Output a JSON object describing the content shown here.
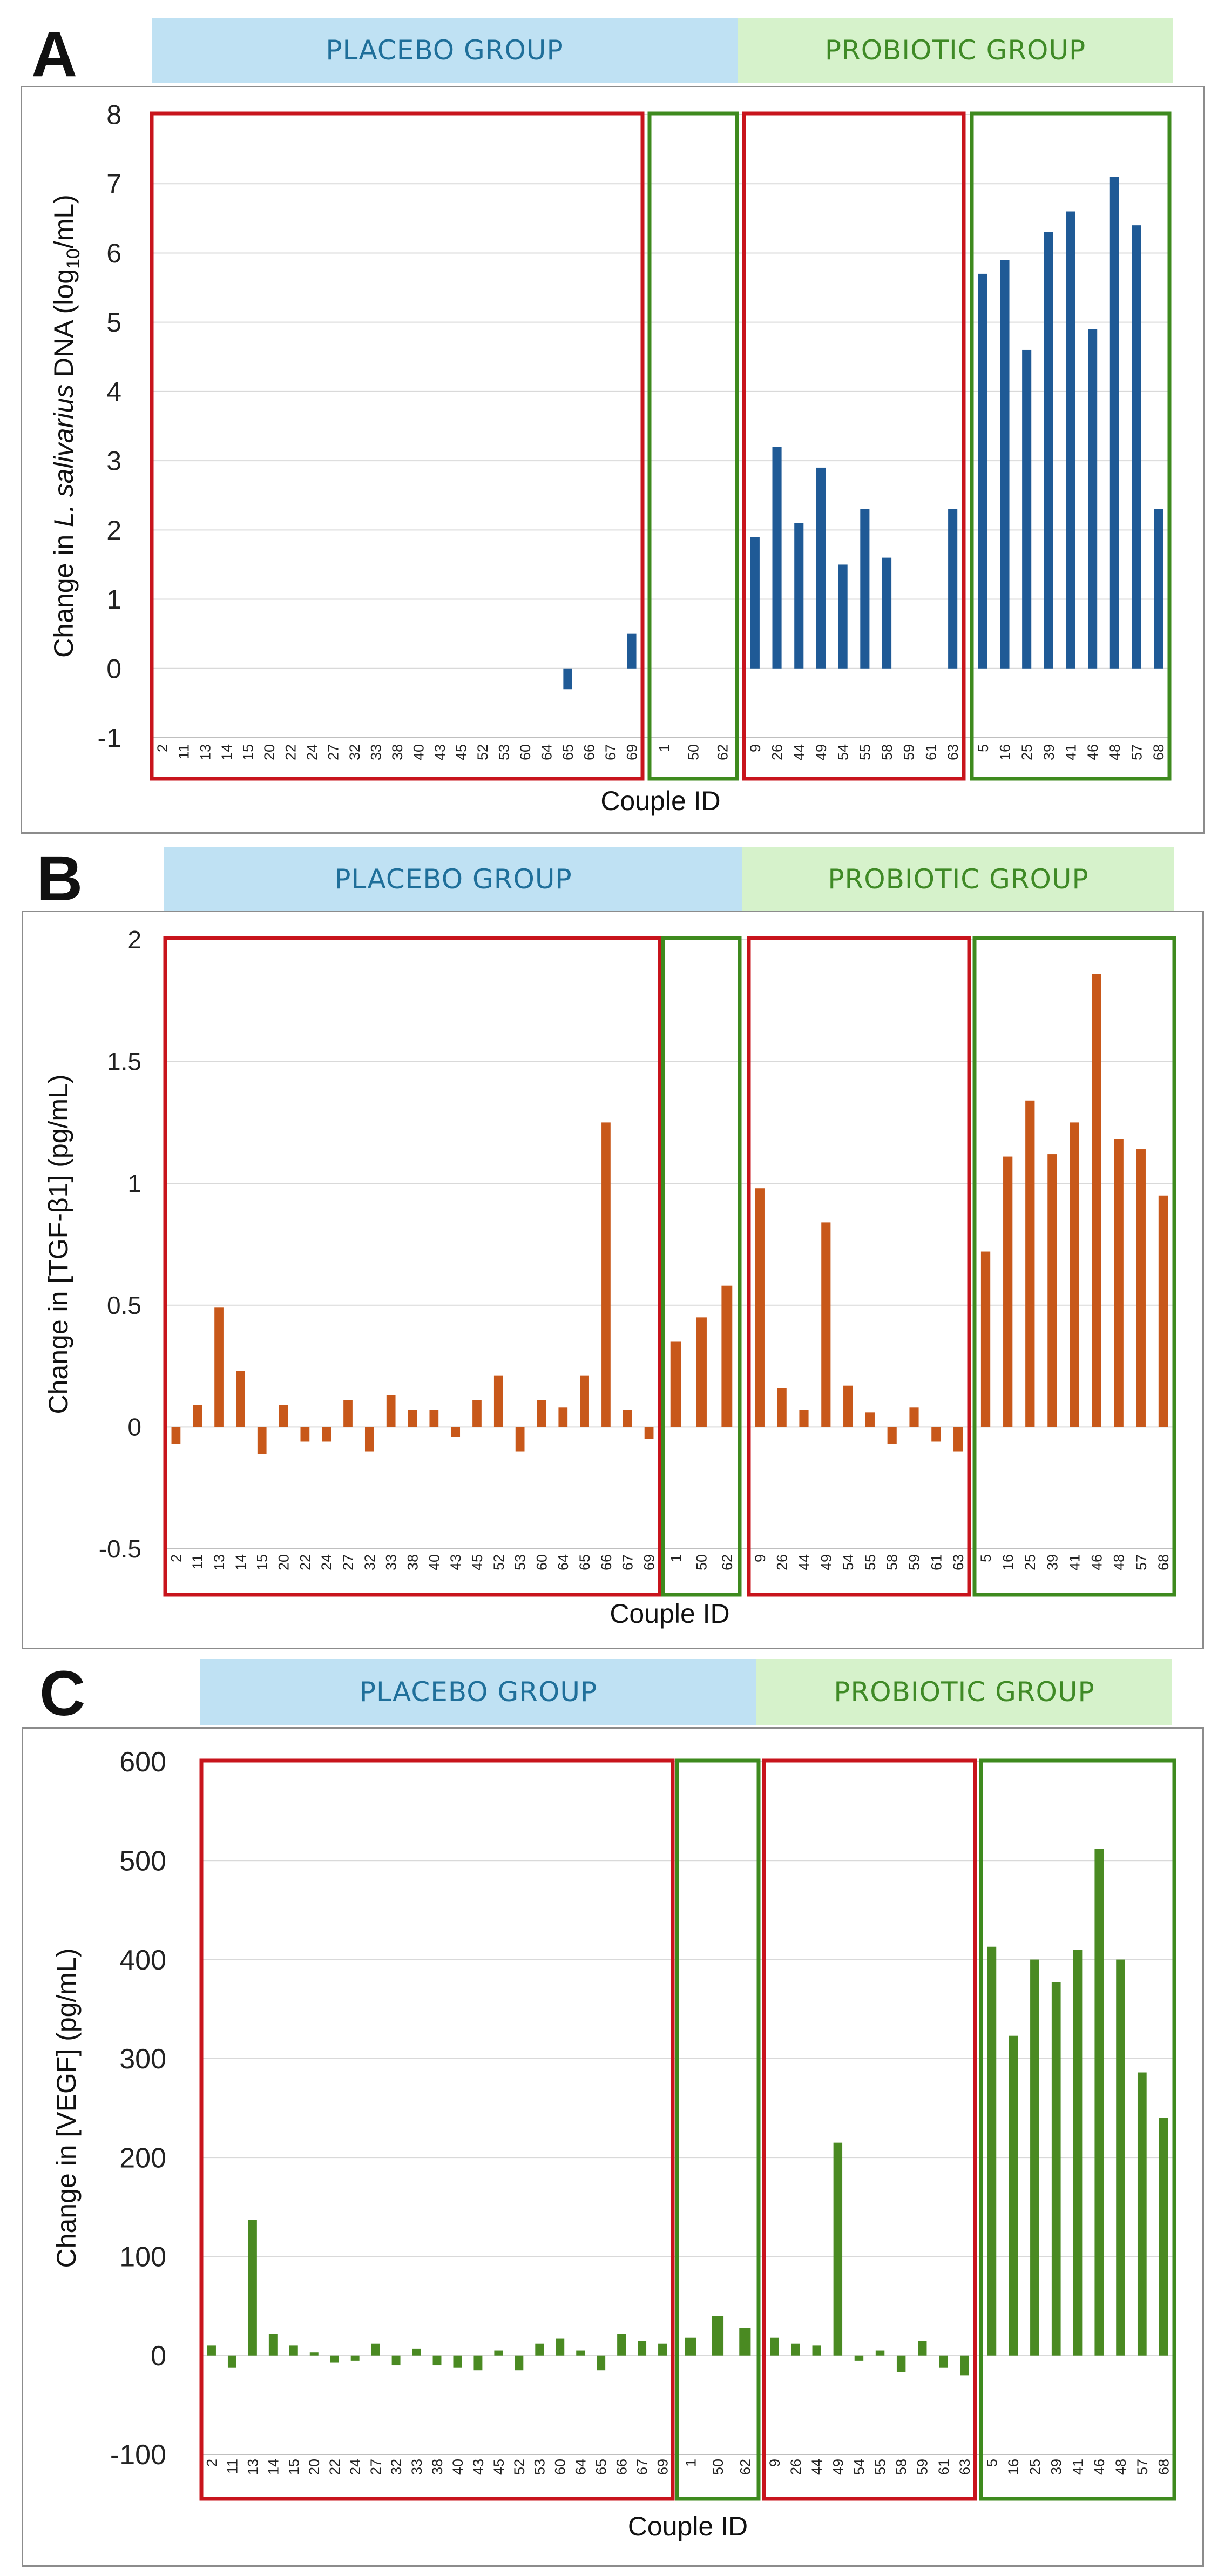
{
  "panels": [
    {
      "letter": "A",
      "placebo_label": "PLACEBO GROUP",
      "probiotic_label": "PROBIOTIC GROUP"
    },
    {
      "letter": "B",
      "placebo_label": "PLACEBO GROUP",
      "probiotic_label": "PROBIOTIC GROUP"
    },
    {
      "letter": "C",
      "placebo_label": "PLACEBO GROUP",
      "probiotic_label": "PROBIOTIC GROUP"
    }
  ],
  "chart_data": [
    {
      "type": "bar",
      "panel": "A",
      "ylabel_parts": [
        "Change in ",
        "L. salivarius",
        " DNA (log",
        "10",
        "/mL)"
      ],
      "xlabel": "Couple ID",
      "ylim": [
        -1,
        8
      ],
      "yticks": [
        -1,
        0,
        1,
        2,
        3,
        4,
        5,
        6,
        7,
        8
      ],
      "color": "#1f5a96",
      "boxes": [
        {
          "group": "placebo",
          "border": "#c8141c",
          "categories": [
            "2",
            "11",
            "13",
            "14",
            "15",
            "20",
            "22",
            "24",
            "27",
            "32",
            "33",
            "38",
            "40",
            "43",
            "45",
            "52",
            "53",
            "60",
            "64",
            "65",
            "66",
            "67",
            "69"
          ],
          "values": [
            0,
            0,
            0,
            0,
            0,
            0,
            0,
            0,
            0,
            0,
            0,
            0,
            0,
            0,
            0,
            0,
            0,
            0,
            0,
            -0.3,
            0,
            0,
            0.5
          ]
        },
        {
          "group": "placebo",
          "border": "#3e8a1e",
          "categories": [
            "1",
            "50",
            "62"
          ],
          "values": [
            0,
            0,
            0
          ]
        },
        {
          "group": "probiotic",
          "border": "#c8141c",
          "categories": [
            "9",
            "26",
            "44",
            "49",
            "54",
            "55",
            "58",
            "59",
            "61",
            "63"
          ],
          "values": [
            1.9,
            3.2,
            2.1,
            2.9,
            1.5,
            2.3,
            1.6,
            0,
            0,
            2.3
          ]
        },
        {
          "group": "probiotic",
          "border": "#3e8a1e",
          "categories": [
            "5",
            "16",
            "25",
            "39",
            "41",
            "46",
            "48",
            "57",
            "68"
          ],
          "values": [
            5.7,
            5.9,
            4.6,
            6.3,
            6.6,
            4.9,
            7.1,
            6.4,
            2.3
          ]
        }
      ]
    },
    {
      "type": "bar",
      "panel": "B",
      "ylabel_parts": [
        "Change in [TGF-β1] (pg/mL)"
      ],
      "xlabel": "Couple ID",
      "ylim": [
        -0.5,
        2
      ],
      "yticks": [
        -0.5,
        0,
        0.5,
        1,
        1.5,
        2
      ],
      "color": "#c8581a",
      "boxes": [
        {
          "group": "placebo",
          "border": "#c8141c",
          "categories": [
            "2",
            "11",
            "13",
            "14",
            "15",
            "20",
            "22",
            "24",
            "27",
            "32",
            "33",
            "38",
            "40",
            "43",
            "45",
            "52",
            "53",
            "60",
            "64",
            "65",
            "66",
            "67",
            "69"
          ],
          "values": [
            -0.07,
            0.09,
            0.49,
            0.23,
            -0.11,
            0.09,
            -0.06,
            -0.06,
            0.11,
            -0.1,
            0.13,
            0.07,
            0.07,
            -0.04,
            0.11,
            0.21,
            -0.1,
            0.11,
            0.08,
            0.21,
            1.25,
            0.07,
            -0.05
          ]
        },
        {
          "group": "placebo",
          "border": "#3e8a1e",
          "categories": [
            "1",
            "50",
            "62"
          ],
          "values": [
            0.35,
            0.45,
            0.58
          ]
        },
        {
          "group": "probiotic",
          "border": "#c8141c",
          "categories": [
            "9",
            "26",
            "44",
            "49",
            "54",
            "55",
            "58",
            "59",
            "61",
            "63"
          ],
          "values": [
            0.98,
            0.16,
            0.07,
            0.84,
            0.17,
            0.06,
            -0.07,
            0.08,
            -0.06,
            -0.1
          ]
        },
        {
          "group": "probiotic",
          "border": "#3e8a1e",
          "categories": [
            "5",
            "16",
            "25",
            "39",
            "41",
            "46",
            "48",
            "57",
            "68"
          ],
          "values": [
            0.72,
            1.11,
            1.34,
            1.12,
            1.25,
            1.86,
            1.18,
            1.14,
            0.95
          ]
        }
      ]
    },
    {
      "type": "bar",
      "panel": "C",
      "ylabel_parts": [
        "Change in [VEGF] (pg/mL)"
      ],
      "xlabel": "Couple ID",
      "ylim": [
        -100,
        600
      ],
      "yticks": [
        -100,
        0,
        100,
        200,
        300,
        400,
        500,
        600
      ],
      "color": "#4a8a22",
      "boxes": [
        {
          "group": "placebo",
          "border": "#c8141c",
          "categories": [
            "2",
            "11",
            "13",
            "14",
            "15",
            "20",
            "22",
            "24",
            "27",
            "32",
            "33",
            "38",
            "40",
            "43",
            "45",
            "52",
            "53",
            "60",
            "64",
            "65",
            "66",
            "67",
            "69"
          ],
          "values": [
            10,
            -12,
            137,
            22,
            10,
            3,
            -7,
            -5,
            12,
            -10,
            7,
            -10,
            -12,
            -15,
            5,
            -15,
            12,
            17,
            5,
            -15,
            22,
            15,
            12
          ]
        },
        {
          "group": "placebo",
          "border": "#3e8a1e",
          "categories": [
            "1",
            "50",
            "62"
          ],
          "values": [
            18,
            40,
            28
          ]
        },
        {
          "group": "probiotic",
          "border": "#c8141c",
          "categories": [
            "9",
            "26",
            "44",
            "49",
            "54",
            "55",
            "58",
            "59",
            "61",
            "63"
          ],
          "values": [
            18,
            12,
            10,
            215,
            -5,
            5,
            -17,
            15,
            -12,
            -20
          ]
        },
        {
          "group": "probiotic",
          "border": "#3e8a1e",
          "categories": [
            "5",
            "16",
            "25",
            "39",
            "41",
            "46",
            "48",
            "57",
            "68"
          ],
          "values": [
            413,
            323,
            400,
            377,
            410,
            512,
            400,
            286,
            240
          ]
        }
      ]
    }
  ]
}
